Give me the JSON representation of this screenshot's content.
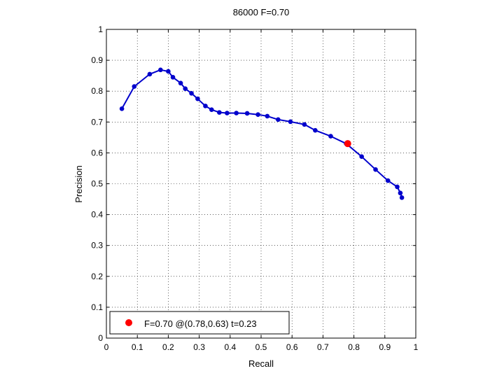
{
  "chart_data": {
    "type": "line",
    "title": "86000 F=0.70",
    "xlabel": "Recall",
    "ylabel": "Precision",
    "xlim": [
      0,
      1
    ],
    "ylim": [
      0,
      1
    ],
    "xticks": [
      "0",
      "0.1",
      "0.2",
      "0.3",
      "0.4",
      "0.5",
      "0.6",
      "0.7",
      "0.8",
      "0.9",
      "1"
    ],
    "yticks": [
      "0",
      "0.1",
      "0.2",
      "0.3",
      "0.4",
      "0.5",
      "0.6",
      "0.7",
      "0.8",
      "0.9",
      "1"
    ],
    "grid": true,
    "grid_style": "dotted",
    "series": [
      {
        "color": "#0000cc",
        "marker": "dot",
        "x": [
          0.05,
          0.09,
          0.14,
          0.175,
          0.2,
          0.215,
          0.24,
          0.255,
          0.275,
          0.295,
          0.32,
          0.34,
          0.365,
          0.39,
          0.42,
          0.455,
          0.49,
          0.52,
          0.555,
          0.595,
          0.64,
          0.675,
          0.725,
          0.775,
          0.825,
          0.87,
          0.91,
          0.94,
          0.95,
          0.955
        ],
        "y": [
          0.743,
          0.815,
          0.855,
          0.869,
          0.864,
          0.845,
          0.826,
          0.808,
          0.793,
          0.775,
          0.752,
          0.74,
          0.731,
          0.729,
          0.729,
          0.728,
          0.724,
          0.719,
          0.708,
          0.701,
          0.692,
          0.673,
          0.654,
          0.63,
          0.588,
          0.546,
          0.51,
          0.49,
          0.47,
          0.455
        ]
      }
    ],
    "best_point": {
      "x": 0.78,
      "y": 0.63,
      "color": "#ff0000"
    },
    "legend": {
      "label": "F=0.70 @(0.78,0.63) t=0.23",
      "placement": "bottom-left"
    }
  }
}
